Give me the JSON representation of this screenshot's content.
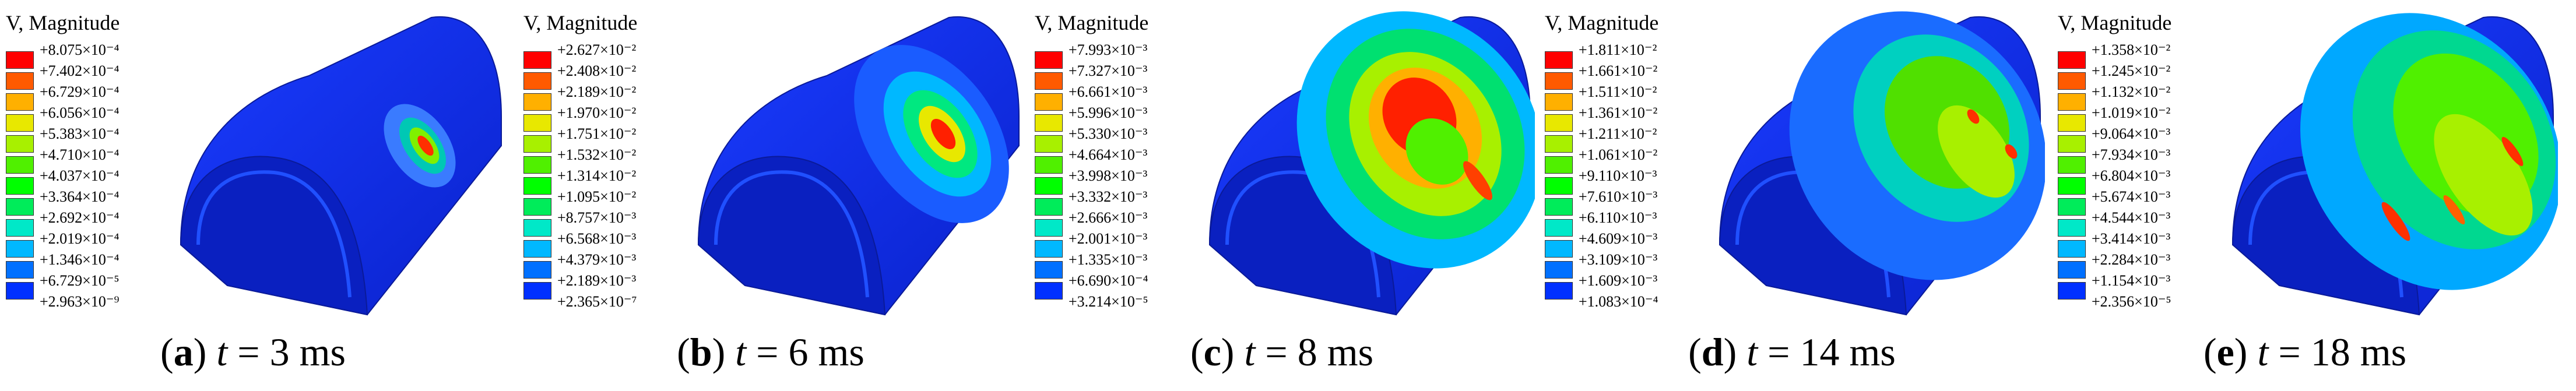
{
  "figure": {
    "legend_title": "V, Magnitude",
    "colors": [
      "#ff0000",
      "#ff5a00",
      "#ffb000",
      "#e8e800",
      "#a8f000",
      "#50f000",
      "#00ff00",
      "#00ec5a",
      "#00e8c8",
      "#00b8ff",
      "#0070ff",
      "#0030ff",
      "#0000e0"
    ],
    "panels": [
      {
        "label": "a",
        "caption_var": "t",
        "caption_value": "= 3 ms",
        "legend_values": [
          "+8.075×10⁻⁴",
          "+7.402×10⁻⁴",
          "+6.729×10⁻⁴",
          "+6.056×10⁻⁴",
          "+5.383×10⁻⁴",
          "+4.710×10⁻⁴",
          "+4.037×10⁻⁴",
          "+3.364×10⁻⁴",
          "+2.692×10⁻⁴",
          "+2.019×10⁻⁴",
          "+1.346×10⁻⁴",
          "+6.729×10⁻⁵",
          "+2.963×10⁻⁹"
        ],
        "hotspot": "small-red-spot-on-crown-right"
      },
      {
        "label": "b",
        "caption_var": "t",
        "caption_value": "= 6 ms",
        "legend_values": [
          "+2.627×10⁻²",
          "+2.408×10⁻²",
          "+2.189×10⁻²",
          "+1.970×10⁻²",
          "+1.751×10⁻²",
          "+1.532×10⁻²",
          "+1.314×10⁻²",
          "+1.095×10⁻²",
          "+8.757×10⁻³",
          "+6.568×10⁻³",
          "+4.379×10⁻³",
          "+2.189×10⁻³",
          "+2.365×10⁻⁷"
        ],
        "hotspot": "larger-spot-spreading"
      },
      {
        "label": "c",
        "caption_var": "t",
        "caption_value": "= 8 ms",
        "legend_values": [
          "+7.993×10⁻³",
          "+7.327×10⁻³",
          "+6.661×10⁻³",
          "+5.996×10⁻³",
          "+5.330×10⁻³",
          "+4.664×10⁻³",
          "+3.998×10⁻³",
          "+3.332×10⁻³",
          "+2.666×10⁻³",
          "+2.001×10⁻³",
          "+1.335×10⁻³",
          "+6.690×10⁻⁴",
          "+3.214×10⁻⁵"
        ],
        "hotspot": "ring-wave"
      },
      {
        "label": "d",
        "caption_var": "t",
        "caption_value": "= 14 ms",
        "legend_values": [
          "+1.811×10⁻²",
          "+1.661×10⁻²",
          "+1.511×10⁻²",
          "+1.361×10⁻²",
          "+1.211×10⁻²",
          "+1.061×10⁻²",
          "+9.110×10⁻³",
          "+7.610×10⁻³",
          "+6.110×10⁻³",
          "+4.609×10⁻³",
          "+3.109×10⁻³",
          "+1.609×10⁻³",
          "+1.083×10⁻⁴"
        ],
        "hotspot": "scattered-green"
      },
      {
        "label": "e",
        "caption_var": "t",
        "caption_value": "= 18 ms",
        "legend_values": [
          "+1.358×10⁻²",
          "+1.245×10⁻²",
          "+1.132×10⁻²",
          "+1.019×10⁻²",
          "+9.064×10⁻³",
          "+7.934×10⁻³",
          "+6.804×10⁻³",
          "+5.674×10⁻³",
          "+4.544×10⁻³",
          "+3.414×10⁻³",
          "+2.284×10⁻³",
          "+1.154×10⁻³",
          "+2.356×10⁻⁵"
        ],
        "hotspot": "widespread-green-red-streaks"
      }
    ]
  }
}
